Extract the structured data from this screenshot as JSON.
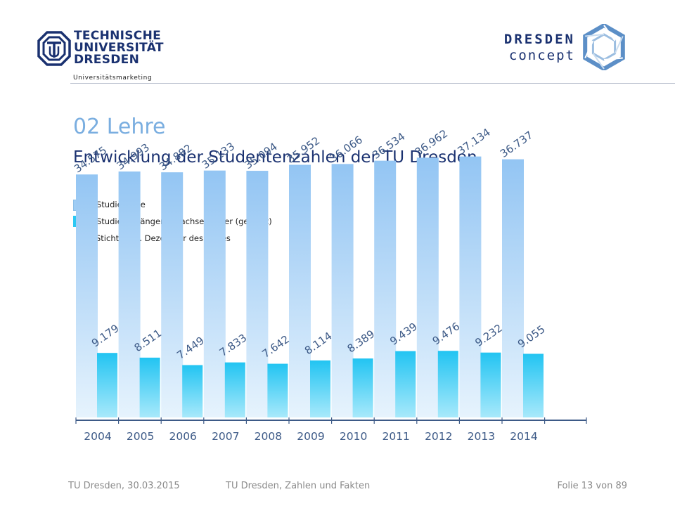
{
  "header": {
    "university_name_lines": [
      "TECHNISCHE",
      "UNIVERSITÄT",
      "DRESDEN"
    ],
    "unit": "Universitätsmarketing",
    "partner_lines": [
      "DRESDEN",
      "concept"
    ]
  },
  "title": "02 Lehre",
  "subtitle": "Entwicklung der Studentenzahlen der TU Dresden",
  "legend": {
    "items": [
      {
        "label": "Studierende",
        "color": "#9ecdf5"
      },
      {
        "label": "Studienanfänger 1. Fachsemester (gesamt)",
        "color": "#2bc8f3"
      }
    ],
    "note": "Stichtag: 1. Dezember des Jahres"
  },
  "chart_data": {
    "type": "bar",
    "categories": [
      "2004",
      "2005",
      "2006",
      "2007",
      "2008",
      "2009",
      "2010",
      "2011",
      "2012",
      "2013",
      "2014"
    ],
    "series": [
      {
        "name": "Studierende",
        "color": "#9ecdf5",
        "values": [
          34575,
          34993,
          34882,
          35133,
          35094,
          35952,
          36066,
          36534,
          36962,
          37134,
          36737
        ],
        "labels": [
          "34.575",
          "34.993",
          "34.882",
          "35.133",
          "35.094",
          "35.952",
          "36.066",
          "36.534",
          "36.962",
          "37.134",
          "36.737"
        ]
      },
      {
        "name": "Studienanfänger 1. Fachsemester (gesamt)",
        "color": "#2bc8f3",
        "values": [
          9179,
          8511,
          7449,
          7833,
          7642,
          8114,
          8389,
          9439,
          9476,
          9232,
          9055
        ],
        "labels": [
          "9.179",
          "8.511",
          "7.449",
          "7.833",
          "7.642",
          "8.114",
          "8.389",
          "9.439",
          "9.476",
          "9.232",
          "9.055"
        ]
      }
    ],
    "ylim": [
      0,
      40000
    ],
    "grid": false,
    "legend_position": "top-left"
  },
  "footer": {
    "left": "TU Dresden, 30.03.2015",
    "center": "TU Dresden, Zahlen und Fakten",
    "right": "Folie 13 von 89"
  }
}
